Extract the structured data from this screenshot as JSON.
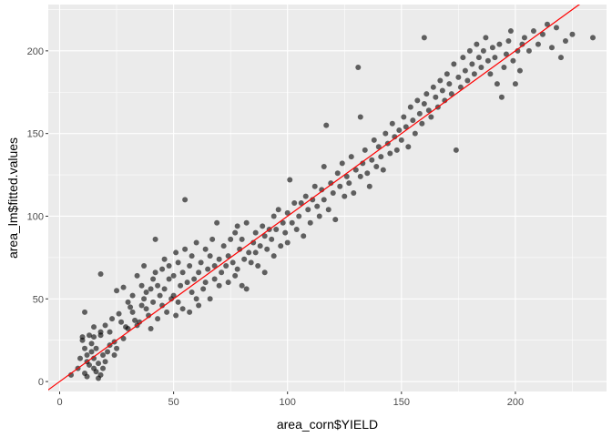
{
  "chart_data": {
    "type": "scatter",
    "title": "",
    "xlabel": "area_corn$YIELD",
    "ylabel": "area_lm$fitted.values",
    "xlim": [
      -5,
      240
    ],
    "ylim": [
      -6,
      228
    ],
    "x_ticks": [
      0,
      50,
      100,
      150,
      200
    ],
    "y_ticks": [
      0,
      50,
      100,
      150,
      200
    ],
    "x_tick_labels": [
      "0",
      "50",
      "100",
      "150",
      "200"
    ],
    "y_tick_labels": [
      "0",
      "50",
      "100",
      "150",
      "200"
    ],
    "grid": true,
    "reference_line": {
      "type": "identity",
      "slope": 1,
      "intercept": 0,
      "color": "#ff0000"
    },
    "colors": {
      "panel": "#ebebeb",
      "grid_major": "#ffffff",
      "point": "#000000",
      "point_alpha": 0.6,
      "line": "#ff0000"
    },
    "points": [
      [
        5,
        4
      ],
      [
        8,
        8
      ],
      [
        9,
        14
      ],
      [
        10,
        25
      ],
      [
        10,
        27
      ],
      [
        11,
        20
      ],
      [
        11,
        5
      ],
      [
        11,
        42
      ],
      [
        12,
        12
      ],
      [
        12,
        3
      ],
      [
        12,
        16
      ],
      [
        13,
        28
      ],
      [
        13,
        10
      ],
      [
        14,
        18
      ],
      [
        14,
        23
      ],
      [
        15,
        8
      ],
      [
        15,
        27
      ],
      [
        15,
        33
      ],
      [
        15,
        14
      ],
      [
        16,
        20
      ],
      [
        16,
        6
      ],
      [
        17,
        11
      ],
      [
        17,
        2
      ],
      [
        18,
        4
      ],
      [
        18,
        30
      ],
      [
        18,
        65
      ],
      [
        18,
        28
      ],
      [
        19,
        16
      ],
      [
        19,
        8
      ],
      [
        20,
        34
      ],
      [
        20,
        12
      ],
      [
        21,
        18
      ],
      [
        22,
        22
      ],
      [
        22,
        30
      ],
      [
        23,
        38
      ],
      [
        24,
        24
      ],
      [
        24,
        16
      ],
      [
        25,
        55
      ],
      [
        25,
        20
      ],
      [
        26,
        41
      ],
      [
        27,
        36
      ],
      [
        28,
        57
      ],
      [
        28,
        26
      ],
      [
        29,
        33
      ],
      [
        30,
        32
      ],
      [
        30,
        48
      ],
      [
        31,
        45
      ],
      [
        32,
        42
      ],
      [
        32,
        52
      ],
      [
        33,
        37
      ],
      [
        34,
        64
      ],
      [
        34,
        34
      ],
      [
        35,
        36
      ],
      [
        36,
        46
      ],
      [
        36,
        58
      ],
      [
        37,
        50
      ],
      [
        37,
        70
      ],
      [
        38,
        54
      ],
      [
        38,
        44
      ],
      [
        39,
        40
      ],
      [
        40,
        56
      ],
      [
        40,
        32
      ],
      [
        41,
        62
      ],
      [
        41,
        48
      ],
      [
        42,
        86
      ],
      [
        42,
        66
      ],
      [
        43,
        58
      ],
      [
        43,
        38
      ],
      [
        44,
        52
      ],
      [
        45,
        68
      ],
      [
        45,
        46
      ],
      [
        46,
        74
      ],
      [
        46,
        56
      ],
      [
        47,
        42
      ],
      [
        48,
        62
      ],
      [
        48,
        70
      ],
      [
        49,
        50
      ],
      [
        50,
        52
      ],
      [
        50,
        64
      ],
      [
        51,
        40
      ],
      [
        51,
        78
      ],
      [
        52,
        72
      ],
      [
        52,
        48
      ],
      [
        53,
        58
      ],
      [
        54,
        66
      ],
      [
        54,
        44
      ],
      [
        55,
        110
      ],
      [
        55,
        80
      ],
      [
        56,
        60
      ],
      [
        57,
        42
      ],
      [
        57,
        70
      ],
      [
        58,
        54
      ],
      [
        58,
        76
      ],
      [
        59,
        62
      ],
      [
        60,
        84
      ],
      [
        60,
        50
      ],
      [
        61,
        66
      ],
      [
        61,
        46
      ],
      [
        62,
        72
      ],
      [
        63,
        56
      ],
      [
        64,
        80
      ],
      [
        64,
        60
      ],
      [
        65,
        68
      ],
      [
        66,
        50
      ],
      [
        66,
        76
      ],
      [
        67,
        86
      ],
      [
        68,
        62
      ],
      [
        68,
        70
      ],
      [
        69,
        96
      ],
      [
        70,
        74
      ],
      [
        70,
        58
      ],
      [
        71,
        66
      ],
      [
        72,
        82
      ],
      [
        73,
        70
      ],
      [
        74,
        76
      ],
      [
        74,
        60
      ],
      [
        75,
        86
      ],
      [
        76,
        72
      ],
      [
        77,
        64
      ],
      [
        77,
        90
      ],
      [
        78,
        94
      ],
      [
        78,
        68
      ],
      [
        79,
        80
      ],
      [
        80,
        86
      ],
      [
        80,
        58
      ],
      [
        81,
        74
      ],
      [
        82,
        96
      ],
      [
        82,
        56
      ],
      [
        83,
        78
      ],
      [
        84,
        72
      ],
      [
        85,
        84
      ],
      [
        86,
        90
      ],
      [
        86,
        78
      ],
      [
        87,
        70
      ],
      [
        88,
        82
      ],
      [
        89,
        94
      ],
      [
        90,
        88
      ],
      [
        90,
        66
      ],
      [
        91,
        80
      ],
      [
        92,
        92
      ],
      [
        93,
        86
      ],
      [
        94,
        100
      ],
      [
        94,
        76
      ],
      [
        95,
        92
      ],
      [
        96,
        104
      ],
      [
        97,
        82
      ],
      [
        98,
        96
      ],
      [
        99,
        90
      ],
      [
        100,
        102
      ],
      [
        100,
        84
      ],
      [
        101,
        122
      ],
      [
        102,
        96
      ],
      [
        103,
        108
      ],
      [
        104,
        92
      ],
      [
        105,
        100
      ],
      [
        106,
        108
      ],
      [
        107,
        88
      ],
      [
        108,
        112
      ],
      [
        109,
        104
      ],
      [
        110,
        96
      ],
      [
        111,
        110
      ],
      [
        112,
        118
      ],
      [
        113,
        106
      ],
      [
        114,
        100
      ],
      [
        115,
        116
      ],
      [
        116,
        130
      ],
      [
        116,
        110
      ],
      [
        117,
        155
      ],
      [
        118,
        104
      ],
      [
        119,
        120
      ],
      [
        120,
        114
      ],
      [
        121,
        98
      ],
      [
        122,
        126
      ],
      [
        123,
        118
      ],
      [
        124,
        132
      ],
      [
        125,
        112
      ],
      [
        126,
        124
      ],
      [
        127,
        120
      ],
      [
        128,
        136
      ],
      [
        129,
        114
      ],
      [
        130,
        128
      ],
      [
        131,
        190
      ],
      [
        132,
        124
      ],
      [
        132,
        160
      ],
      [
        133,
        132
      ],
      [
        134,
        140
      ],
      [
        135,
        126
      ],
      [
        136,
        118
      ],
      [
        137,
        134
      ],
      [
        138,
        146
      ],
      [
        139,
        130
      ],
      [
        140,
        142
      ],
      [
        141,
        136
      ],
      [
        142,
        128
      ],
      [
        143,
        150
      ],
      [
        144,
        144
      ],
      [
        145,
        138
      ],
      [
        146,
        156
      ],
      [
        147,
        148
      ],
      [
        148,
        140
      ],
      [
        149,
        152
      ],
      [
        150,
        146
      ],
      [
        151,
        160
      ],
      [
        152,
        154
      ],
      [
        153,
        142
      ],
      [
        154,
        166
      ],
      [
        155,
        158
      ],
      [
        156,
        150
      ],
      [
        157,
        170
      ],
      [
        158,
        162
      ],
      [
        159,
        156
      ],
      [
        160,
        208
      ],
      [
        160,
        168
      ],
      [
        161,
        174
      ],
      [
        162,
        164
      ],
      [
        163,
        160
      ],
      [
        164,
        178
      ],
      [
        165,
        172
      ],
      [
        166,
        166
      ],
      [
        167,
        182
      ],
      [
        168,
        176
      ],
      [
        169,
        170
      ],
      [
        170,
        186
      ],
      [
        171,
        180
      ],
      [
        172,
        174
      ],
      [
        173,
        192
      ],
      [
        174,
        140
      ],
      [
        175,
        184
      ],
      [
        176,
        178
      ],
      [
        177,
        196
      ],
      [
        178,
        188
      ],
      [
        179,
        182
      ],
      [
        180,
        200
      ],
      [
        181,
        192
      ],
      [
        182,
        186
      ],
      [
        183,
        204
      ],
      [
        184,
        196
      ],
      [
        185,
        190
      ],
      [
        186,
        200
      ],
      [
        187,
        208
      ],
      [
        188,
        194
      ],
      [
        189,
        186
      ],
      [
        190,
        202
      ],
      [
        191,
        196
      ],
      [
        192,
        180
      ],
      [
        193,
        204
      ],
      [
        194,
        172
      ],
      [
        195,
        190
      ],
      [
        196,
        198
      ],
      [
        197,
        206
      ],
      [
        198,
        212
      ],
      [
        199,
        194
      ],
      [
        200,
        180
      ],
      [
        201,
        200
      ],
      [
        202,
        188
      ],
      [
        203,
        204
      ],
      [
        204,
        208
      ],
      [
        206,
        200
      ],
      [
        208,
        212
      ],
      [
        210,
        204
      ],
      [
        212,
        210
      ],
      [
        214,
        216
      ],
      [
        216,
        202
      ],
      [
        218,
        214
      ],
      [
        220,
        196
      ],
      [
        222,
        206
      ],
      [
        225,
        210
      ],
      [
        234,
        208
      ]
    ]
  }
}
